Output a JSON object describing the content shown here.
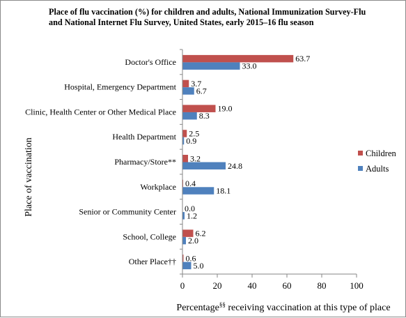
{
  "chart_data": {
    "type": "bar",
    "orientation": "horizontal",
    "title": "Place of flu vaccination (%) for children and adults, National Immunization Survey-Flu and National Internet Flu Survey, United States, early 2015–16 flu season",
    "xlabel_prefix": "Percentage",
    "xlabel_sup": "§§",
    "xlabel_suffix": " receiving vaccination at this type of place",
    "ylabel": "Place of vaccination",
    "xlim": [
      0,
      100
    ],
    "x_ticks": [
      "0",
      "20",
      "40",
      "60",
      "80",
      "100"
    ],
    "categories": [
      "Doctor's Office",
      "Hospital, Emergency Department",
      "Clinic, Health Center or Other Medical Place",
      "Health Department",
      "Pharmacy/Store**",
      "Workplace",
      "Senior or Community Center",
      "School, College",
      "Other Place††"
    ],
    "series": [
      {
        "name": "Children",
        "color": "#C0504D",
        "values": [
          63.7,
          3.7,
          19.0,
          2.5,
          3.2,
          0.4,
          0.0,
          6.2,
          0.6
        ],
        "labels": [
          "63.7",
          "3.7",
          "19.0",
          "2.5",
          "3.2",
          "0.4",
          "0.0",
          "6.2",
          "0.6"
        ]
      },
      {
        "name": "Adults",
        "color": "#4F81BD",
        "values": [
          33.0,
          6.7,
          8.3,
          0.9,
          24.8,
          18.1,
          1.2,
          2.0,
          5.0
        ],
        "labels": [
          "33.0",
          "6.7",
          "8.3",
          "0.9",
          "24.8",
          "18.1",
          "1.2",
          "2.0",
          "5.0"
        ]
      }
    ],
    "legend_position": "right",
    "grid": false
  }
}
